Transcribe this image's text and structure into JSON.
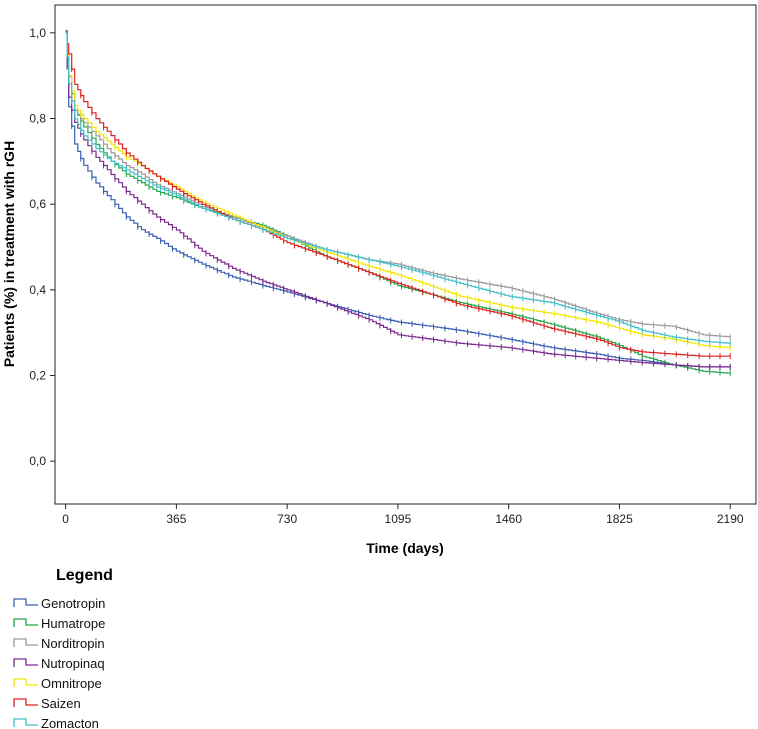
{
  "chart_data": {
    "type": "line",
    "subtype": "kaplan-meier-step",
    "title": "",
    "xlabel": "Time (days)",
    "ylabel": "Patients (%) in treatment with rGH",
    "xlim": [
      -35,
      2275
    ],
    "ylim": [
      -0.1,
      1.065
    ],
    "x_ticks": [
      0,
      365,
      730,
      1095,
      1460,
      1825,
      2190
    ],
    "x_tick_labels": [
      "0",
      "365",
      "730",
      "1095",
      "1460",
      "1825",
      "2190"
    ],
    "y_ticks": [
      0.0,
      0.2,
      0.4,
      0.6,
      0.8,
      1.0
    ],
    "y_tick_labels": [
      "0,0",
      "0,2",
      "0,4",
      "0,6",
      "0,8",
      "1,0"
    ],
    "grid": false,
    "legend_title": "Legend",
    "legend_position": "bottom-left",
    "series": [
      {
        "name": "Genotropin",
        "color": "#3a5fb0",
        "x": [
          0,
          10,
          30,
          60,
          100,
          150,
          200,
          250,
          300,
          365,
          450,
          550,
          650,
          730,
          850,
          1000,
          1095,
          1200,
          1300,
          1460,
          1600,
          1750,
          1825,
          1900,
          2000,
          2100,
          2190
        ],
        "y": [
          1.0,
          0.83,
          0.74,
          0.69,
          0.65,
          0.61,
          0.57,
          0.54,
          0.52,
          0.49,
          0.46,
          0.43,
          0.41,
          0.395,
          0.37,
          0.34,
          0.325,
          0.315,
          0.305,
          0.285,
          0.265,
          0.25,
          0.24,
          0.235,
          0.225,
          0.22,
          0.22
        ]
      },
      {
        "name": "Humatrope",
        "color": "#22a84a",
        "x": [
          0,
          10,
          30,
          60,
          100,
          150,
          200,
          250,
          300,
          365,
          450,
          550,
          650,
          730,
          850,
          1000,
          1095,
          1200,
          1300,
          1460,
          1600,
          1750,
          1825,
          1900,
          2000,
          2100,
          2190
        ],
        "y": [
          1.0,
          0.9,
          0.82,
          0.78,
          0.74,
          0.7,
          0.67,
          0.65,
          0.63,
          0.615,
          0.59,
          0.57,
          0.55,
          0.525,
          0.48,
          0.44,
          0.41,
          0.39,
          0.37,
          0.345,
          0.32,
          0.29,
          0.27,
          0.245,
          0.225,
          0.21,
          0.205
        ]
      },
      {
        "name": "Norditropin",
        "color": "#9a9a9a",
        "x": [
          0,
          10,
          30,
          60,
          100,
          150,
          200,
          250,
          300,
          365,
          450,
          550,
          650,
          730,
          850,
          1000,
          1095,
          1200,
          1300,
          1460,
          1600,
          1750,
          1825,
          1900,
          2000,
          2100,
          2190
        ],
        "y": [
          1.0,
          0.9,
          0.82,
          0.79,
          0.76,
          0.72,
          0.69,
          0.67,
          0.645,
          0.625,
          0.595,
          0.57,
          0.545,
          0.525,
          0.495,
          0.47,
          0.46,
          0.44,
          0.425,
          0.405,
          0.38,
          0.345,
          0.33,
          0.32,
          0.315,
          0.295,
          0.29
        ]
      },
      {
        "name": "Nutropinaq",
        "color": "#7a2a8e",
        "x": [
          0,
          10,
          30,
          60,
          100,
          150,
          200,
          250,
          300,
          365,
          450,
          550,
          650,
          730,
          850,
          1000,
          1095,
          1200,
          1300,
          1460,
          1600,
          1750,
          1825,
          1900,
          2000,
          2100,
          2190
        ],
        "y": [
          1.0,
          0.85,
          0.79,
          0.75,
          0.71,
          0.67,
          0.63,
          0.6,
          0.57,
          0.54,
          0.49,
          0.45,
          0.42,
          0.4,
          0.37,
          0.33,
          0.295,
          0.285,
          0.275,
          0.265,
          0.25,
          0.24,
          0.235,
          0.23,
          0.225,
          0.22,
          0.22
        ]
      },
      {
        "name": "Omnitrope",
        "color": "#f2e600",
        "x": [
          0,
          10,
          30,
          60,
          100,
          150,
          200,
          250,
          300,
          365,
          450,
          550,
          650,
          730,
          850,
          1000,
          1095,
          1200,
          1300,
          1460,
          1600,
          1750,
          1825,
          1900,
          2000,
          2100,
          2190
        ],
        "y": [
          1.0,
          0.9,
          0.83,
          0.8,
          0.77,
          0.74,
          0.71,
          0.69,
          0.665,
          0.64,
          0.605,
          0.575,
          0.545,
          0.52,
          0.49,
          0.455,
          0.435,
          0.41,
          0.385,
          0.36,
          0.345,
          0.325,
          0.31,
          0.295,
          0.285,
          0.27,
          0.265
        ]
      },
      {
        "name": "Saizen",
        "color": "#e02020",
        "x": [
          0,
          10,
          30,
          60,
          100,
          150,
          200,
          250,
          300,
          365,
          450,
          550,
          650,
          730,
          850,
          1000,
          1095,
          1200,
          1300,
          1460,
          1600,
          1750,
          1825,
          1900,
          2000,
          2100,
          2190
        ],
        "y": [
          1.0,
          0.95,
          0.88,
          0.84,
          0.8,
          0.76,
          0.72,
          0.69,
          0.665,
          0.635,
          0.6,
          0.565,
          0.54,
          0.51,
          0.48,
          0.44,
          0.415,
          0.39,
          0.365,
          0.34,
          0.31,
          0.285,
          0.265,
          0.255,
          0.25,
          0.245,
          0.245
        ]
      },
      {
        "name": "Zomacton",
        "color": "#3fbfc9",
        "x": [
          0,
          10,
          30,
          60,
          100,
          150,
          200,
          250,
          300,
          365,
          450,
          550,
          650,
          730,
          850,
          1000,
          1095,
          1200,
          1300,
          1460,
          1600,
          1750,
          1825,
          1900,
          2000,
          2100,
          2190
        ],
        "y": [
          1.0,
          0.88,
          0.8,
          0.76,
          0.73,
          0.7,
          0.68,
          0.66,
          0.64,
          0.62,
          0.59,
          0.565,
          0.54,
          0.52,
          0.495,
          0.47,
          0.455,
          0.435,
          0.415,
          0.385,
          0.37,
          0.34,
          0.325,
          0.305,
          0.29,
          0.28,
          0.275
        ]
      }
    ]
  }
}
